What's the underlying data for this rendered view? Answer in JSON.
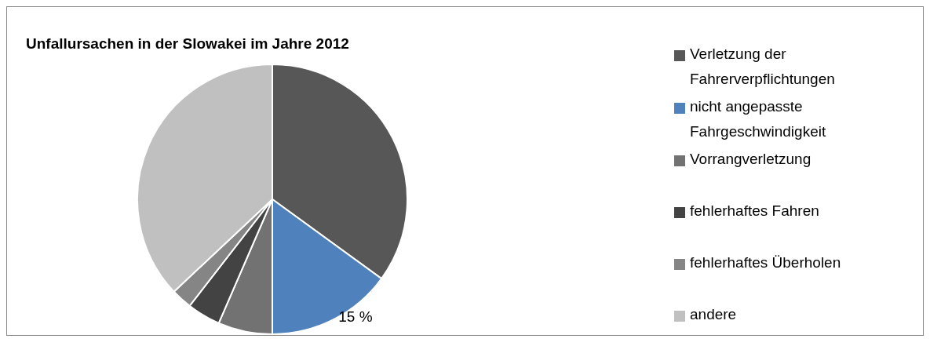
{
  "chart_data": {
    "type": "pie",
    "title": "Unfallursachen in der Slowakei im Jahre 2012",
    "categories": [
      "Verletzung der Fahrerverpflichtungen",
      "nicht angepasste Fahrgeschwindigkeit",
      "Vorrangverletzung",
      "fehlerhaftes Fahren",
      "fehlerhaftes Überholen",
      "andere"
    ],
    "values": [
      35,
      15,
      6.5,
      4,
      2.5,
      37
    ],
    "value_labels": [
      null,
      "15 %",
      null,
      null,
      null,
      null
    ],
    "colors": [
      "#575757",
      "#4f81bd",
      "#727272",
      "#434343",
      "#858585",
      "#c0c0c0"
    ],
    "legend": "right"
  }
}
